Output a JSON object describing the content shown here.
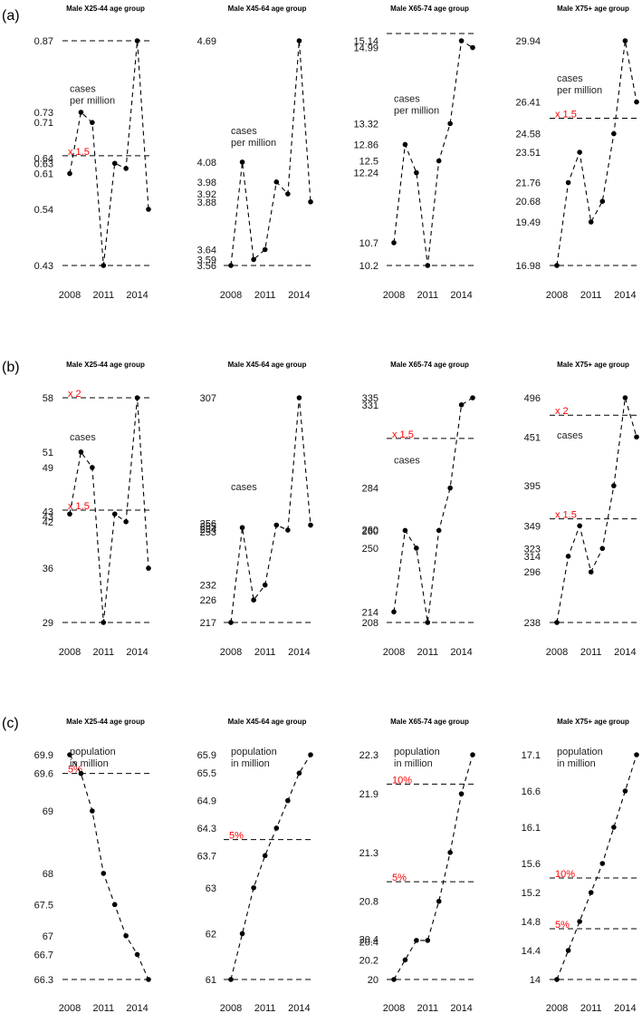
{
  "chart_data": [
    {
      "panel": "(a)",
      "type": "line",
      "unit_label": "cases per million",
      "years": [
        2008,
        2009,
        2010,
        2011,
        2012,
        2013,
        2014,
        2015
      ],
      "x_ticks": [
        "2008",
        "2011",
        "2014"
      ],
      "subplots": [
        {
          "title": "Male X25-44 age group",
          "ylim": [
            0.43,
            0.87
          ],
          "values": [
            0.61,
            0.73,
            0.71,
            0.43,
            0.63,
            0.62,
            0.87,
            0.54
          ],
          "yticks": [
            "0.87",
            "0.73",
            "0.71",
            "0.64",
            "0.63",
            "0.61",
            "0.54",
            "0.43"
          ],
          "ytick_values": [
            0.87,
            0.73,
            0.71,
            0.64,
            0.63,
            0.61,
            0.54,
            0.43
          ],
          "hlines": [
            {
              "value": 0.87,
              "label": ""
            },
            {
              "value": 0.645,
              "label": "x 1.5"
            },
            {
              "value": 0.43,
              "label": ""
            }
          ],
          "note_lines": [
            "cases",
            "per million"
          ],
          "note_value": 0.77
        },
        {
          "title": "Male X45-64 age group",
          "ylim": [
            3.56,
            4.69
          ],
          "values": [
            3.56,
            4.08,
            3.59,
            3.64,
            3.98,
            3.92,
            4.69,
            3.88
          ],
          "yticks": [
            "4.69",
            "4.08",
            "3.98",
            "3.92",
            "3.88",
            "3.64",
            "3.59",
            "3.56"
          ],
          "ytick_values": [
            4.69,
            4.08,
            3.98,
            3.92,
            3.88,
            3.64,
            3.59,
            3.56
          ],
          "hlines": [
            {
              "value": 3.56,
              "label": ""
            }
          ],
          "note_lines": [
            "cases",
            "per million"
          ],
          "note_value": 4.22
        },
        {
          "title": "Male X65-74 age group",
          "ylim": [
            10.2,
            15.14
          ],
          "values": [
            10.7,
            12.86,
            12.24,
            10.2,
            12.5,
            13.32,
            15.14,
            14.99
          ],
          "yticks": [
            "15.14",
            "14.99",
            "13.32",
            "12.86",
            "12.5",
            "12.24",
            "10.7",
            "10.2"
          ],
          "ytick_values": [
            15.14,
            14.99,
            13.32,
            12.86,
            12.5,
            12.24,
            10.7,
            10.2
          ],
          "hlines": [
            {
              "value": 15.3,
              "label": ""
            },
            {
              "value": 10.2,
              "label": ""
            }
          ],
          "note_lines": [
            "cases",
            "per million"
          ],
          "note_value": 13.8
        },
        {
          "title": "Male X75+ age group",
          "ylim": [
            16.98,
            29.94
          ],
          "values": [
            16.98,
            21.76,
            23.51,
            19.49,
            20.68,
            24.58,
            29.94,
            26.41
          ],
          "yticks": [
            "29.94",
            "26.41",
            "24.58",
            "23.51",
            "21.76",
            "20.68",
            "19.49",
            "16.98"
          ],
          "ytick_values": [
            29.94,
            26.41,
            24.58,
            23.51,
            21.76,
            20.68,
            19.49,
            16.98
          ],
          "hlines": [
            {
              "value": 25.47,
              "label": "x 1.5"
            },
            {
              "value": 16.98,
              "label": ""
            }
          ],
          "note_lines": [
            "cases",
            "per million"
          ],
          "note_value": 27.6
        }
      ]
    },
    {
      "panel": "(b)",
      "type": "line",
      "unit_label": "cases",
      "years": [
        2008,
        2009,
        2010,
        2011,
        2012,
        2013,
        2014,
        2015
      ],
      "x_ticks": [
        "2008",
        "2011",
        "2014"
      ],
      "subplots": [
        {
          "title": "Male X25-44 age group",
          "ylim": [
            29,
            58
          ],
          "values": [
            43,
            51,
            49,
            29,
            43,
            42,
            58,
            36
          ],
          "yticks": [
            "58",
            "51",
            "49",
            "43",
            "43",
            "42",
            "36",
            "29"
          ],
          "ytick_values": [
            58,
            51,
            49,
            43.3,
            42.7,
            42,
            36,
            29
          ],
          "hlines": [
            {
              "value": 58,
              "label": "x 2"
            },
            {
              "value": 43.5,
              "label": "x 1.5"
            },
            {
              "value": 29,
              "label": ""
            }
          ],
          "note_lines": [
            "cases"
          ],
          "note_value": 52.5
        },
        {
          "title": "Male X45-64 age group",
          "ylim": [
            217,
            307
          ],
          "values": [
            217,
            255,
            226,
            232,
            256,
            254,
            307,
            256
          ],
          "yticks": [
            "307",
            "256",
            "255",
            "254",
            "253",
            "232",
            "226",
            "217"
          ],
          "ytick_values": [
            307,
            256.8,
            255.6,
            254.4,
            253.2,
            232,
            226,
            217
          ],
          "hlines": [
            {
              "value": 217,
              "label": ""
            }
          ],
          "note_lines": [
            "cases"
          ],
          "note_value": 270
        },
        {
          "title": "Male X65-74 age group",
          "ylim": [
            208,
            335
          ],
          "values": [
            214,
            260,
            250,
            208,
            260,
            284,
            331,
            335
          ],
          "yticks": [
            "335",
            "331",
            "284",
            "260",
            "260",
            "250",
            "214",
            "208"
          ],
          "ytick_values": [
            335,
            331,
            284,
            260.4,
            259.6,
            250,
            214,
            208
          ],
          "hlines": [
            {
              "value": 312,
              "label": "x 1.5"
            },
            {
              "value": 208,
              "label": ""
            }
          ],
          "note_lines": [
            "cases"
          ],
          "note_value": 298
        },
        {
          "title": "Male X75+ age group",
          "ylim": [
            238,
            496
          ],
          "values": [
            238,
            314,
            349,
            296,
            323,
            395,
            496,
            451
          ],
          "yticks": [
            "496",
            "451",
            "395",
            "349",
            "323",
            "314",
            "296",
            "238"
          ],
          "ytick_values": [
            496,
            451,
            395,
            349,
            323,
            314,
            296,
            238
          ],
          "hlines": [
            {
              "value": 476,
              "label": "x 2"
            },
            {
              "value": 357,
              "label": "x 1.5"
            },
            {
              "value": 238,
              "label": ""
            }
          ],
          "note_lines": [
            "cases"
          ],
          "note_value": 449
        }
      ]
    },
    {
      "panel": "(c)",
      "type": "line",
      "unit_label": "population in million",
      "years": [
        2008,
        2009,
        2010,
        2011,
        2012,
        2013,
        2014,
        2015
      ],
      "x_ticks": [
        "2008",
        "2011",
        "2014"
      ],
      "subplots": [
        {
          "title": "Male X25-44 age group",
          "ylim": [
            66.3,
            69.9
          ],
          "values": [
            69.9,
            69.6,
            69,
            68,
            67.5,
            67,
            66.7,
            66.3
          ],
          "yticks": [
            "69.9",
            "69.6",
            "69",
            "68",
            "67.5",
            "67",
            "66.7",
            "66.3"
          ],
          "ytick_values": [
            69.9,
            69.6,
            69,
            68,
            67.5,
            67,
            66.7,
            66.3
          ],
          "hlines": [
            {
              "value": 69.6,
              "label": "5%"
            },
            {
              "value": 66.3,
              "label": ""
            }
          ],
          "note_lines": [
            "population",
            "in million"
          ],
          "note_value": 69.9
        },
        {
          "title": "Male X45-64 age group",
          "ylim": [
            61,
            65.9
          ],
          "values": [
            61,
            62,
            63,
            63.7,
            64.3,
            64.9,
            65.5,
            65.9
          ],
          "yticks": [
            "65.9",
            "65.5",
            "64.9",
            "64.3",
            "63.7",
            "63",
            "62",
            "61"
          ],
          "ytick_values": [
            65.9,
            65.5,
            64.9,
            64.3,
            63.7,
            63,
            62,
            61
          ],
          "hlines": [
            {
              "value": 64.05,
              "label": "5%"
            },
            {
              "value": 61,
              "label": ""
            }
          ],
          "note_lines": [
            "population",
            "in million"
          ],
          "note_value": 65.9
        },
        {
          "title": "Male X65-74 age group",
          "ylim": [
            20,
            22.3
          ],
          "values": [
            20,
            20.2,
            20.4,
            20.4,
            20.8,
            21.3,
            21.9,
            22.3
          ],
          "yticks": [
            "22.3",
            "21.9",
            "21.3",
            "20.8",
            "20.4",
            "20.4",
            "20.2",
            "20"
          ],
          "ytick_values": [
            22.3,
            21.9,
            21.3,
            20.8,
            20.415,
            20.385,
            20.2,
            20
          ],
          "hlines": [
            {
              "value": 22.0,
              "label": "10%"
            },
            {
              "value": 21.0,
              "label": "5%"
            },
            {
              "value": 20,
              "label": ""
            }
          ],
          "note_lines": [
            "population",
            "in million"
          ],
          "note_value": 22.3
        },
        {
          "title": "Male X75+ age group",
          "ylim": [
            14,
            17.1
          ],
          "values": [
            14,
            14.4,
            14.8,
            15.2,
            15.6,
            16.1,
            16.6,
            17.1
          ],
          "yticks": [
            "17.1",
            "16.6",
            "16.1",
            "15.6",
            "15.2",
            "14.8",
            "14.4",
            "14"
          ],
          "ytick_values": [
            17.1,
            16.6,
            16.1,
            15.6,
            15.2,
            14.8,
            14.4,
            14
          ],
          "hlines": [
            {
              "value": 15.4,
              "label": "10%"
            },
            {
              "value": 14.7,
              "label": "5%"
            },
            {
              "value": 14,
              "label": ""
            }
          ],
          "note_lines": [
            "population",
            "in million"
          ],
          "note_value": 17.1
        }
      ]
    }
  ]
}
